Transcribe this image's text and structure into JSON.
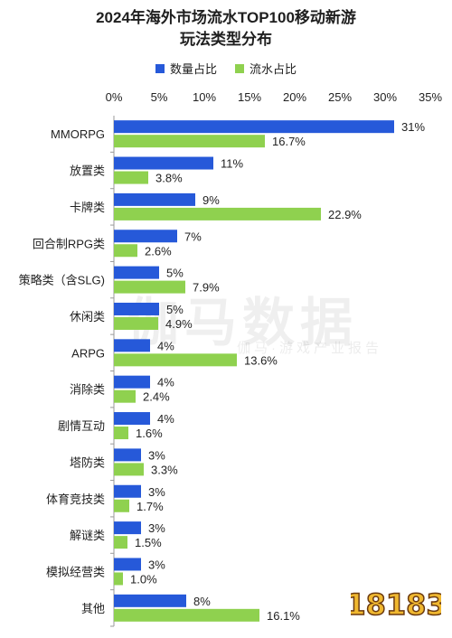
{
  "header": {
    "title_line1": "2024年海外市场流水TOP100移动新游",
    "title_line2": "玩法类型分布"
  },
  "legend": {
    "series1_label": "数量占比",
    "series2_label": "流水占比"
  },
  "colors": {
    "series1": "#2659d9",
    "series2": "#8fd14f",
    "axis": "#9a9a9a",
    "text": "#222222",
    "logo": "#f0b830"
  },
  "watermark": {
    "main": "伽马数据",
    "sub": "伽马·游戏产业报告"
  },
  "logo": {
    "text": "18183"
  },
  "chart_data": {
    "type": "bar",
    "orientation": "horizontal",
    "title": "2024年海外市场流水TOP100移动新游 玩法类型分布",
    "categories": [
      "MMORPG",
      "放置类",
      "卡牌类",
      "回合制RPG类",
      "策略类（含SLG)",
      "休闲类",
      "ARPG",
      "消除类",
      "剧情互动",
      "塔防类",
      "体育竞技类",
      "解谜类",
      "模拟经营类",
      "其他"
    ],
    "series": [
      {
        "name": "数量占比",
        "values": [
          31,
          11,
          9,
          7,
          5,
          5,
          4,
          4,
          4,
          3,
          3,
          3,
          3,
          8
        ],
        "labels": [
          "31%",
          "11%",
          "9%",
          "7%",
          "5%",
          "5%",
          "4%",
          "4%",
          "4%",
          "3%",
          "3%",
          "3%",
          "3%",
          "8%"
        ]
      },
      {
        "name": "流水占比",
        "values": [
          16.7,
          3.8,
          22.9,
          2.6,
          7.9,
          4.9,
          13.6,
          2.4,
          1.6,
          3.3,
          1.7,
          1.5,
          1.0,
          16.1
        ],
        "labels": [
          "16.7%",
          "3.8%",
          "22.9%",
          "2.6%",
          "7.9%",
          "4.9%",
          "13.6%",
          "2.4%",
          "1.6%",
          "3.3%",
          "1.7%",
          "1.5%",
          "1.0%",
          "16.1%"
        ]
      }
    ],
    "xlim": [
      0,
      35
    ],
    "xticks": [
      "0%",
      "5%",
      "10%",
      "15%",
      "20%",
      "25%",
      "30%",
      "35%"
    ],
    "legend_position": "top-center",
    "grid": false
  }
}
